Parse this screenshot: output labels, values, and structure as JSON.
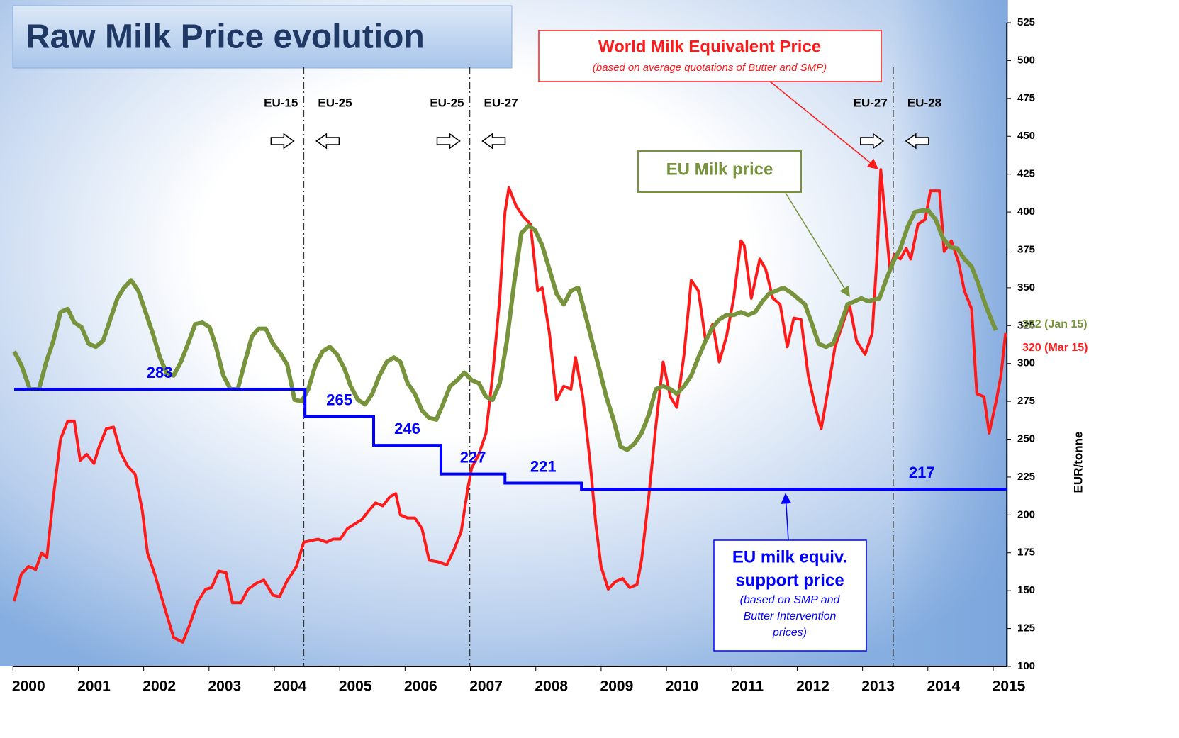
{
  "chart_data": {
    "type": "line",
    "title": "Raw Milk Price evolution",
    "y_label": "EUR/tonne",
    "xlim": [
      1999.78,
      2015
    ],
    "ylim": [
      100,
      525
    ],
    "xticks": [
      2000,
      2001,
      2002,
      2003,
      2004,
      2005,
      2006,
      2007,
      2008,
      2009,
      2010,
      2011,
      2012,
      2013,
      2014,
      2015
    ],
    "yticks": [
      100,
      125,
      150,
      175,
      200,
      225,
      250,
      275,
      300,
      325,
      350,
      375,
      400,
      425,
      450,
      475,
      500,
      525
    ],
    "series": [
      {
        "name": "World Milk Equivalent Price",
        "note": "(based on average quotations of Butter and SMP)",
        "color": "#ff1a1a",
        "end_label": "320 (Mar 15)",
        "x": [
          1999.78,
          1999.89,
          2000.0,
          2000.11,
          2000.2,
          2000.28,
          2000.38,
          2000.49,
          2000.6,
          2000.7,
          2000.79,
          2000.89,
          2001.0,
          2001.08,
          2001.19,
          2001.3,
          2001.41,
          2001.52,
          2001.63,
          2001.74,
          2001.82,
          2001.93,
          2002.06,
          2002.22,
          2002.36,
          2002.47,
          2002.58,
          2002.71,
          2002.8,
          2002.91,
          2003.02,
          2003.12,
          2003.25,
          2003.36,
          2003.49,
          2003.6,
          2003.74,
          2003.84,
          2003.95,
          2004.1,
          2004.21,
          2004.32,
          2004.43,
          2004.56,
          2004.66,
          2004.77,
          2004.88,
          2004.99,
          2005.1,
          2005.21,
          2005.31,
          2005.42,
          2005.53,
          2005.62,
          2005.69,
          2005.8,
          2005.91,
          2006.02,
          2006.13,
          2006.27,
          2006.4,
          2006.51,
          2006.62,
          2006.67,
          2006.72,
          2006.78,
          2006.89,
          2007.0,
          2007.1,
          2007.21,
          2007.29,
          2007.35,
          2007.46,
          2007.57,
          2007.68,
          2007.79,
          2007.86,
          2007.97,
          2008.08,
          2008.19,
          2008.3,
          2008.37,
          2008.48,
          2008.59,
          2008.68,
          2008.76,
          2008.87,
          2008.98,
          2009.09,
          2009.2,
          2009.31,
          2009.38,
          2009.49,
          2009.6,
          2009.71,
          2009.82,
          2009.92,
          2010.03,
          2010.14,
          2010.25,
          2010.36,
          2010.47,
          2010.57,
          2010.68,
          2010.79,
          2010.9,
          2010.95,
          2011.06,
          2011.19,
          2011.28,
          2011.39,
          2011.5,
          2011.61,
          2011.71,
          2011.82,
          2011.93,
          2012.04,
          2012.13,
          2012.23,
          2012.34,
          2012.45,
          2012.56,
          2012.67,
          2012.8,
          2012.91,
          2012.99,
          2013.04,
          2013.1,
          2013.18,
          2013.25,
          2013.34,
          2013.43,
          2013.5,
          2013.61,
          2013.72,
          2013.8,
          2013.94,
          2014.01,
          2014.12,
          2014.23,
          2014.32,
          2014.43,
          2014.51,
          2014.62,
          2014.7,
          2014.81,
          2014.88,
          2014.95
        ],
        "values": [
          143,
          161,
          166,
          164,
          175,
          172,
          212,
          250,
          262,
          262,
          236,
          240,
          234,
          245,
          257,
          258,
          241,
          232,
          227,
          203,
          175,
          161,
          142,
          119,
          116,
          128,
          142,
          151,
          152,
          163,
          162,
          142,
          142,
          151,
          155,
          157,
          147,
          146,
          156,
          166,
          182,
          183,
          184,
          182,
          184,
          184,
          191,
          194,
          197,
          203,
          208,
          206,
          212,
          214,
          200,
          198,
          198,
          191,
          170,
          169,
          167,
          177,
          189,
          203,
          217,
          231,
          240,
          254,
          292,
          343,
          400,
          416,
          404,
          397,
          392,
          348,
          350,
          320,
          276,
          285,
          283,
          304,
          278,
          236,
          194,
          166,
          151,
          156,
          158,
          152,
          154,
          170,
          212,
          259,
          301,
          278,
          271,
          306,
          355,
          348,
          315,
          326,
          301,
          318,
          343,
          381,
          378,
          343,
          369,
          362,
          343,
          339,
          311,
          330,
          329,
          292,
          271,
          257,
          282,
          311,
          325,
          339,
          315,
          306,
          320,
          376,
          428,
          400,
          362,
          372,
          369,
          376,
          369,
          392,
          395,
          414,
          414,
          374,
          381,
          367,
          348,
          336,
          280,
          278,
          254,
          276,
          292,
          320
        ]
      },
      {
        "name": "EU Milk price",
        "color": "#77933c",
        "end_label": "322 (Jan 15)",
        "x": [
          1999.78,
          1999.89,
          2000.02,
          2000.16,
          2000.27,
          2000.38,
          2000.49,
          2000.6,
          2000.7,
          2000.81,
          2000.92,
          2001.03,
          2001.14,
          2001.25,
          2001.36,
          2001.46,
          2001.57,
          2001.68,
          2001.79,
          2001.9,
          2002.01,
          2002.11,
          2002.22,
          2002.33,
          2002.44,
          2002.55,
          2002.66,
          2002.77,
          2002.87,
          2002.98,
          2003.09,
          2003.2,
          2003.31,
          2003.42,
          2003.52,
          2003.63,
          2003.74,
          2003.85,
          2003.96,
          2004.07,
          2004.18,
          2004.28,
          2004.39,
          2004.5,
          2004.61,
          2004.72,
          2004.83,
          2004.93,
          2005.04,
          2005.15,
          2005.26,
          2005.37,
          2005.48,
          2005.59,
          2005.69,
          2005.8,
          2005.91,
          2006.02,
          2006.13,
          2006.24,
          2006.34,
          2006.45,
          2006.56,
          2006.67,
          2006.78,
          2006.89,
          2007.0,
          2007.1,
          2007.21,
          2007.32,
          2007.43,
          2007.54,
          2007.65,
          2007.75,
          2007.86,
          2007.97,
          2008.08,
          2008.19,
          2008.3,
          2008.41,
          2008.51,
          2008.62,
          2008.73,
          2008.84,
          2008.95,
          2009.06,
          2009.16,
          2009.27,
          2009.38,
          2009.49,
          2009.6,
          2009.71,
          2009.82,
          2009.92,
          2010.03,
          2010.14,
          2010.25,
          2010.36,
          2010.47,
          2010.57,
          2010.68,
          2010.79,
          2010.9,
          2011.01,
          2011.12,
          2011.23,
          2011.33,
          2011.44,
          2011.55,
          2011.66,
          2011.77,
          2011.88,
          2011.98,
          2012.09,
          2012.2,
          2012.31,
          2012.42,
          2012.53,
          2012.64,
          2012.74,
          2012.85,
          2013.02,
          2013.12,
          2013.23,
          2013.34,
          2013.45,
          2013.56,
          2013.67,
          2013.77,
          2013.88,
          2013.99,
          2014.1,
          2014.21,
          2014.32,
          2014.43,
          2014.53,
          2014.64,
          2014.75,
          2014.8
        ],
        "values": [
          308,
          299,
          283,
          283,
          301,
          315,
          334,
          336,
          327,
          324,
          313,
          311,
          315,
          329,
          343,
          350,
          355,
          348,
          334,
          320,
          304,
          294,
          292,
          301,
          313,
          326,
          327,
          324,
          311,
          292,
          283,
          283,
          301,
          318,
          323,
          323,
          313,
          307,
          299,
          276,
          275,
          283,
          299,
          308,
          311,
          306,
          297,
          285,
          276,
          273,
          280,
          292,
          301,
          304,
          301,
          287,
          280,
          269,
          264,
          263,
          273,
          285,
          289,
          294,
          289,
          287,
          278,
          276,
          287,
          315,
          353,
          386,
          391,
          388,
          378,
          362,
          346,
          339,
          348,
          350,
          334,
          315,
          297,
          278,
          263,
          245,
          243,
          247,
          254,
          266,
          283,
          285,
          283,
          280,
          285,
          292,
          304,
          315,
          324,
          329,
          332,
          332,
          334,
          332,
          334,
          341,
          346,
          348,
          350,
          347,
          343,
          339,
          327,
          313,
          311,
          313,
          325,
          339,
          341,
          343,
          341,
          343,
          355,
          367,
          376,
          390,
          400,
          401,
          401,
          395,
          383,
          377,
          376,
          369,
          364,
          353,
          339,
          327,
          322
        ]
      },
      {
        "name_lines": [
          "EU milk equiv.",
          "support price"
        ],
        "note_lines": [
          "(based on SMP and",
          "Butter Intervention",
          "prices)"
        ],
        "color": "#0000ff",
        "step": true,
        "x": [
          1999.78,
          2004.23,
          2005.28,
          2006.31,
          2007.29,
          2008.46
        ],
        "x_end": 2014.97,
        "values": [
          283,
          265,
          246,
          227,
          221,
          217
        ]
      }
    ],
    "events": [
      {
        "x": 2004.21,
        "left": "EU-15",
        "right": "EU-25"
      },
      {
        "x": 2006.75,
        "left": "EU-25",
        "right": "EU-27"
      },
      {
        "x": 2013.23,
        "left": "EU-27",
        "right": "EU-28"
      }
    ]
  }
}
